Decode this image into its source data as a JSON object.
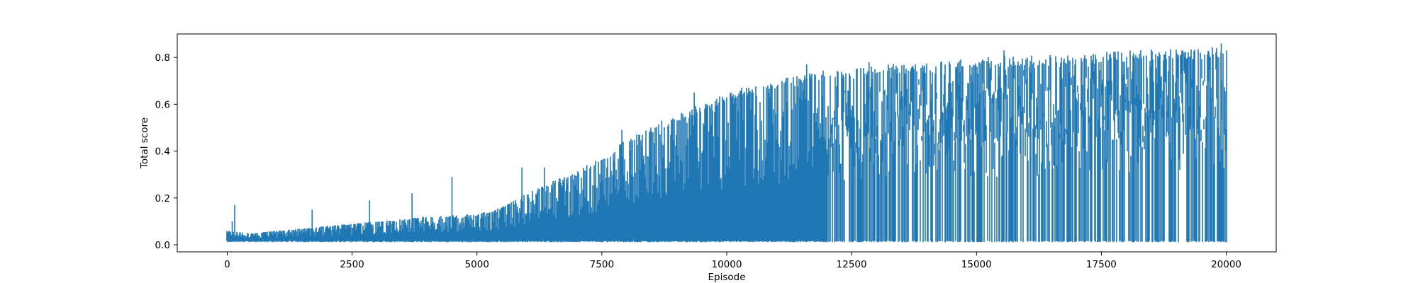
{
  "chart_data": {
    "type": "line",
    "title": "",
    "xlabel": "Episode",
    "ylabel": "Total score",
    "xlim": [
      -1000,
      21000
    ],
    "ylim": [
      -0.03,
      0.9
    ],
    "xticks": [
      0,
      2500,
      5000,
      7500,
      10000,
      12500,
      15000,
      17500,
      20000
    ],
    "yticks": [
      0.0,
      0.2,
      0.4,
      0.6,
      0.8
    ],
    "xtick_labels": [
      "0",
      "2500",
      "5000",
      "7500",
      "10000",
      "12500",
      "15000",
      "17500",
      "20000"
    ],
    "ytick_labels": [
      "0.0",
      "0.2",
      "0.4",
      "0.6",
      "0.8"
    ],
    "grid": false,
    "legend": "none",
    "series": [
      {
        "color": "#1f77b4",
        "episodes": 20000,
        "floor": 0.015,
        "upper_envelope": {
          "x": [
            0,
            500,
            1000,
            2000,
            3000,
            4000,
            5000,
            5500,
            6000,
            6500,
            7000,
            7500,
            8000,
            8500,
            9000,
            9500,
            10000,
            10500,
            11000,
            11500,
            12000,
            12500,
            13000,
            13500,
            14000,
            14500,
            15000,
            15500,
            16000,
            17000,
            18000,
            19000,
            20000
          ],
          "y": [
            0.06,
            0.05,
            0.06,
            0.08,
            0.1,
            0.12,
            0.13,
            0.16,
            0.22,
            0.27,
            0.31,
            0.37,
            0.45,
            0.5,
            0.55,
            0.6,
            0.64,
            0.67,
            0.7,
            0.72,
            0.74,
            0.75,
            0.76,
            0.77,
            0.77,
            0.78,
            0.79,
            0.8,
            0.8,
            0.81,
            0.82,
            0.83,
            0.84
          ]
        },
        "spikes": [
          {
            "x": 100,
            "y": 0.1
          },
          {
            "x": 150,
            "y": 0.17
          },
          {
            "x": 1700,
            "y": 0.15
          },
          {
            "x": 2850,
            "y": 0.19
          },
          {
            "x": 3700,
            "y": 0.22
          },
          {
            "x": 4500,
            "y": 0.29
          },
          {
            "x": 5900,
            "y": 0.33
          },
          {
            "x": 6350,
            "y": 0.33
          },
          {
            "x": 7200,
            "y": 0.34
          },
          {
            "x": 7900,
            "y": 0.49
          },
          {
            "x": 8700,
            "y": 0.53
          },
          {
            "x": 9350,
            "y": 0.65
          },
          {
            "x": 10300,
            "y": 0.67
          },
          {
            "x": 11600,
            "y": 0.77
          },
          {
            "x": 12850,
            "y": 0.78
          },
          {
            "x": 15550,
            "y": 0.83
          },
          {
            "x": 19900,
            "y": 0.86
          }
        ]
      }
    ]
  }
}
